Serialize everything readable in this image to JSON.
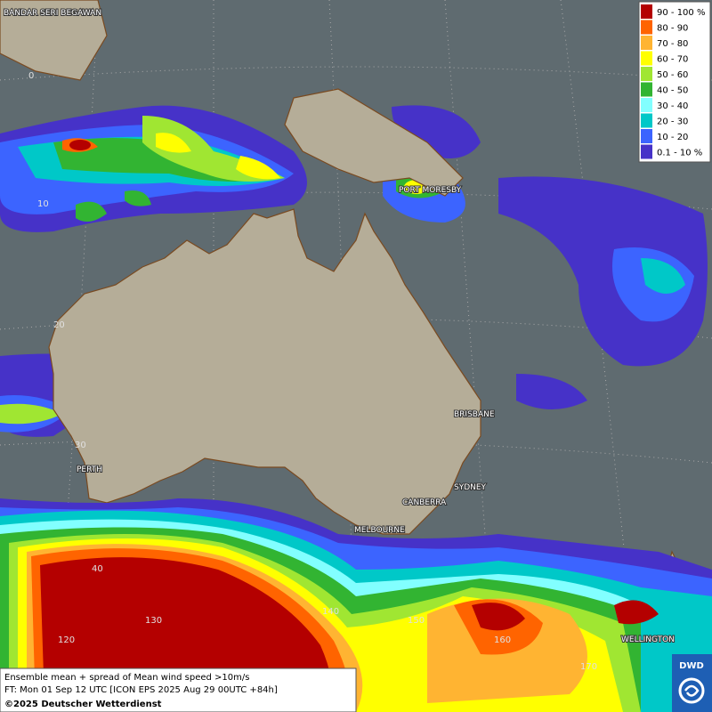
{
  "legend": {
    "items": [
      {
        "label": "90 - 100 %",
        "color": "#b40000"
      },
      {
        "label": "80 - 90",
        "color": "#ff6400"
      },
      {
        "label": "70 - 80",
        "color": "#ffb432"
      },
      {
        "label": "60 - 70",
        "color": "#ffff00"
      },
      {
        "label": "50 - 60",
        "color": "#a0e632"
      },
      {
        "label": "40 - 50",
        "color": "#32b432"
      },
      {
        "label": "30 - 40",
        "color": "#82ffff"
      },
      {
        "label": "20 - 30",
        "color": "#00c8c8"
      },
      {
        "label": "10 - 20",
        "color": "#3c64ff"
      },
      {
        "label": "0.1 - 10 %",
        "color": "#4632c8"
      }
    ]
  },
  "cities": [
    "BANDAR SERI BEGAWAN",
    "PORT MORESBY",
    "BRISBANE",
    "PERTH",
    "SYDNEY",
    "CANBERRA",
    "MELBOURNE",
    "WELLINGTON"
  ],
  "grid_labels": [
    "0",
    "10",
    "20",
    "30",
    "40",
    "120",
    "130",
    "140",
    "150",
    "160",
    "170"
  ],
  "caption": {
    "line1": "Ensemble mean + spread of Mean wind speed >10m/s",
    "line2": "FT: Mon 01 Sep 12 UTC [ICON EPS 2025 Aug 29 00UTC +84h]",
    "copyright": "©2025 Deutscher Wetterdienst"
  },
  "logo": "DWD"
}
